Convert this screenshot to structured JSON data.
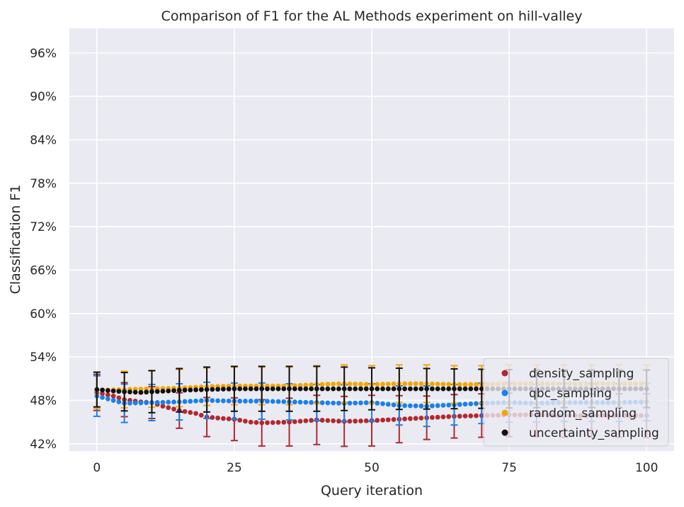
{
  "chart_data": {
    "type": "scatter",
    "title": "Comparison of F1 for the AL Methods experiment on hill-valley",
    "xlabel": "Query iteration",
    "ylabel": "Classification F1",
    "xlim": [
      -5,
      105
    ],
    "ylim": [
      0.41,
      0.994
    ],
    "xticks": [
      0,
      25,
      50,
      75,
      100
    ],
    "yticks": [
      0.42,
      0.48,
      0.54,
      0.6,
      0.66,
      0.72,
      0.78,
      0.84,
      0.9,
      0.96
    ],
    "ytick_labels": [
      "42%",
      "48%",
      "54%",
      "60%",
      "66%",
      "72%",
      "78%",
      "84%",
      "90%",
      "96%"
    ],
    "grid": true,
    "legend_position": "lower right",
    "errorbar_every": 5,
    "series": [
      {
        "name": "density_sampling",
        "color": "#b2282e",
        "keypoints": [
          [
            0,
            0.491
          ],
          [
            3,
            0.486
          ],
          [
            5,
            0.481
          ],
          [
            8,
            0.478
          ],
          [
            10,
            0.477
          ],
          [
            12,
            0.472
          ],
          [
            15,
            0.466
          ],
          [
            18,
            0.462
          ],
          [
            20,
            0.457
          ],
          [
            23,
            0.455
          ],
          [
            25,
            0.454
          ],
          [
            28,
            0.45
          ],
          [
            30,
            0.449
          ],
          [
            35,
            0.45
          ],
          [
            40,
            0.453
          ],
          [
            45,
            0.451
          ],
          [
            50,
            0.452
          ],
          [
            55,
            0.454
          ],
          [
            60,
            0.456
          ],
          [
            65,
            0.458
          ],
          [
            70,
            0.459
          ],
          [
            75,
            0.46
          ],
          [
            80,
            0.46
          ],
          [
            85,
            0.459
          ],
          [
            90,
            0.459
          ],
          [
            95,
            0.459
          ],
          [
            100,
            0.459
          ]
        ],
        "err_keypoints": [
          [
            0,
            0.025
          ],
          [
            10,
            0.022
          ],
          [
            20,
            0.027
          ],
          [
            30,
            0.032
          ],
          [
            40,
            0.034
          ],
          [
            50,
            0.035
          ],
          [
            60,
            0.03
          ],
          [
            70,
            0.03
          ],
          [
            80,
            0.03
          ],
          [
            90,
            0.03
          ],
          [
            100,
            0.03
          ]
        ]
      },
      {
        "name": "qbc_sampling",
        "color": "#1a80ea",
        "keypoints": [
          [
            0,
            0.486
          ],
          [
            3,
            0.48
          ],
          [
            5,
            0.476
          ],
          [
            10,
            0.477
          ],
          [
            15,
            0.478
          ],
          [
            20,
            0.48
          ],
          [
            25,
            0.479
          ],
          [
            30,
            0.479
          ],
          [
            35,
            0.478
          ],
          [
            40,
            0.477
          ],
          [
            45,
            0.476
          ],
          [
            50,
            0.477
          ],
          [
            55,
            0.473
          ],
          [
            60,
            0.472
          ],
          [
            65,
            0.474
          ],
          [
            70,
            0.476
          ],
          [
            75,
            0.477
          ],
          [
            80,
            0.476
          ],
          [
            85,
            0.477
          ],
          [
            90,
            0.477
          ],
          [
            95,
            0.477
          ],
          [
            100,
            0.478
          ]
        ],
        "err_keypoints": [
          [
            0,
            0.028
          ],
          [
            10,
            0.025
          ],
          [
            20,
            0.025
          ],
          [
            30,
            0.025
          ],
          [
            40,
            0.025
          ],
          [
            50,
            0.026
          ],
          [
            60,
            0.028
          ],
          [
            70,
            0.028
          ],
          [
            80,
            0.026
          ],
          [
            90,
            0.026
          ],
          [
            100,
            0.026
          ]
        ]
      },
      {
        "name": "random_sampling",
        "color": "#f5a500",
        "keypoints": [
          [
            0,
            0.494
          ],
          [
            5,
            0.495
          ],
          [
            10,
            0.496
          ],
          [
            15,
            0.497
          ],
          [
            20,
            0.499
          ],
          [
            25,
            0.5
          ],
          [
            30,
            0.5
          ],
          [
            35,
            0.5
          ],
          [
            40,
            0.502
          ],
          [
            45,
            0.503
          ],
          [
            50,
            0.502
          ],
          [
            55,
            0.503
          ],
          [
            60,
            0.503
          ],
          [
            65,
            0.502
          ],
          [
            70,
            0.502
          ],
          [
            75,
            0.503
          ],
          [
            80,
            0.503
          ],
          [
            85,
            0.503
          ],
          [
            90,
            0.503
          ],
          [
            95,
            0.503
          ],
          [
            100,
            0.503
          ]
        ],
        "err_keypoints": [
          [
            0,
            0.025
          ],
          [
            20,
            0.026
          ],
          [
            40,
            0.026
          ],
          [
            60,
            0.026
          ],
          [
            80,
            0.026
          ],
          [
            100,
            0.026
          ]
        ]
      },
      {
        "name": "uncertainty_sampling",
        "color": "#111111",
        "keypoints": [
          [
            0,
            0.495
          ],
          [
            3,
            0.493
          ],
          [
            5,
            0.492
          ],
          [
            8,
            0.491
          ],
          [
            10,
            0.492
          ],
          [
            13,
            0.493
          ],
          [
            15,
            0.494
          ],
          [
            20,
            0.495
          ],
          [
            25,
            0.496
          ],
          [
            30,
            0.496
          ],
          [
            40,
            0.496
          ],
          [
            50,
            0.496
          ],
          [
            60,
            0.496
          ],
          [
            70,
            0.496
          ],
          [
            80,
            0.496
          ],
          [
            90,
            0.496
          ],
          [
            100,
            0.496
          ]
        ],
        "err_keypoints": [
          [
            0,
            0.024
          ],
          [
            10,
            0.029
          ],
          [
            20,
            0.031
          ],
          [
            30,
            0.031
          ],
          [
            40,
            0.031
          ],
          [
            50,
            0.029
          ],
          [
            60,
            0.028
          ],
          [
            70,
            0.027
          ],
          [
            80,
            0.026
          ],
          [
            90,
            0.026
          ],
          [
            100,
            0.026
          ]
        ]
      }
    ]
  }
}
